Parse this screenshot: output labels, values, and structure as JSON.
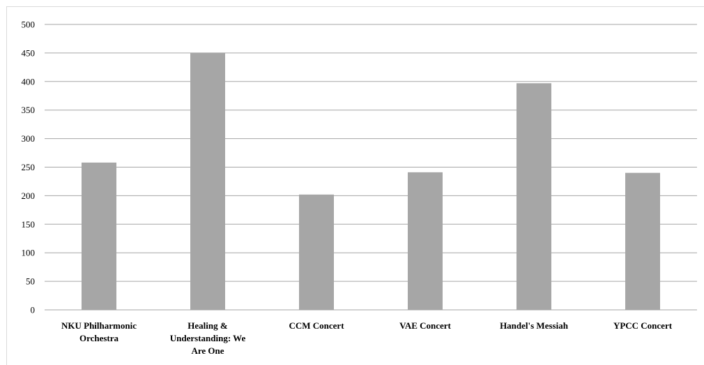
{
  "chart_data": {
    "type": "bar",
    "title": "",
    "xlabel": "",
    "ylabel": "",
    "categories": [
      [
        "NKU Philharmonic",
        "Orchestra"
      ],
      [
        "Healing &",
        "Understanding: We",
        "Are One"
      ],
      [
        "CCM Concert"
      ],
      [
        "VAE Concert"
      ],
      [
        "Handel's Messiah"
      ],
      [
        "YPCC Concert"
      ]
    ],
    "values": [
      258,
      450,
      202,
      241,
      397,
      240
    ],
    "ylim": [
      0,
      500
    ],
    "yticks": [
      0,
      50,
      100,
      150,
      200,
      250,
      300,
      350,
      400,
      450,
      500
    ],
    "grid": true,
    "legend": "none",
    "colors": {
      "bar": "#a6a6a6",
      "grid": "#a6a6a6",
      "axis": "#a6a6a6"
    }
  }
}
